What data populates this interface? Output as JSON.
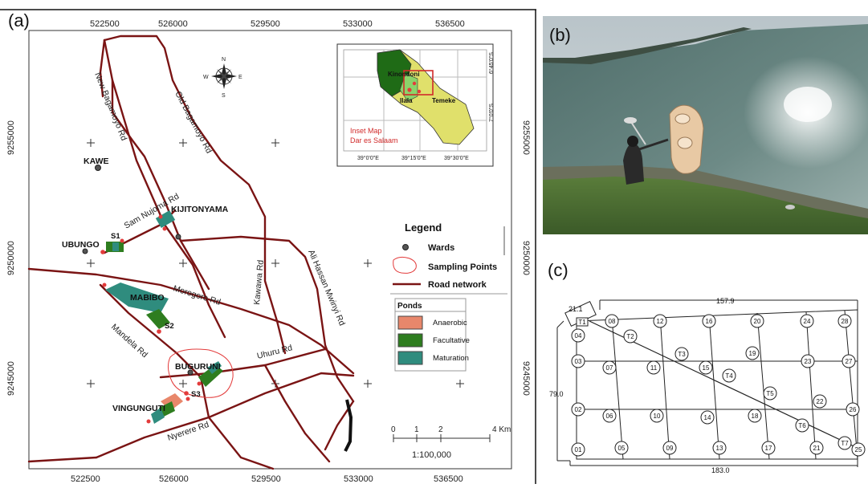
{
  "panels": {
    "a": "(a)",
    "b": "(b)",
    "c": "(c)"
  },
  "map": {
    "easting_ticks": [
      "522500",
      "526000",
      "529500",
      "533000",
      "536500"
    ],
    "northing_ticks": [
      "9255000",
      "9250000",
      "9245000"
    ],
    "roads": {
      "new_bagamoyo": "New Bagamoyo Rd",
      "old_bagamoyo": "Old Bagamoyo Rd",
      "sam_nujoma": "Sam Nujoma  Rd",
      "kawawa": "Kawawa Rd",
      "ali_hassan": "Ali Hassan Mwinyi Rd",
      "morogoro": "Morogoro Rd",
      "mandela": "Mandela Rd",
      "uhuru": "Uhuru Rd",
      "nyerere": "Nyerere Rd"
    },
    "wards": [
      "KAWE",
      "KIJITONYAMA",
      "UBUNGO",
      "MABIBO",
      "BUGURUNI",
      "VINGUNGUTI"
    ],
    "sites": [
      "S1",
      "S2",
      "S3"
    ],
    "compass": {
      "n": "N",
      "s": "S",
      "e": "E",
      "w": "W"
    },
    "legend": {
      "title": "Legend",
      "wards": "Wards",
      "sampling": "Sampling Points",
      "roads": "Road network",
      "ponds_title": "Ponds",
      "anaerobic": "Anaerobic",
      "facultative": "Facultative",
      "maturation": "Maturation",
      "colors": {
        "anaerobic": "#e8876b",
        "facultative": "#2e7d1f",
        "maturation": "#2f8c7e",
        "road": "#7a1414",
        "sampling": "#e33b3b"
      }
    },
    "scale": {
      "ticks": [
        "0",
        "1",
        "2",
        "4 Km"
      ],
      "ratio": "1:100,000"
    },
    "inset": {
      "label1": "Inset Map",
      "label2": "Dar es Salaam",
      "districts": [
        "Kinondoni",
        "Ilala",
        "Temeke"
      ],
      "lat_labels": [
        "6°45'0\"S",
        "7°0'0\"S"
      ],
      "lon_labels": [
        "39°0'0\"E",
        "39°15'0\"E",
        "39°30'0\"E"
      ]
    }
  },
  "grid": {
    "top_length": "157.9",
    "left_length": "21.1",
    "side_length": "79.0",
    "bottom_length": "183.0",
    "points": [
      "01",
      "02",
      "03",
      "04",
      "05",
      "06",
      "07",
      "08",
      "09",
      "10",
      "11",
      "12",
      "13",
      "14",
      "15",
      "16",
      "17",
      "18",
      "19",
      "20",
      "21",
      "22",
      "23",
      "24",
      "25",
      "26",
      "27",
      "28"
    ],
    "transect_points": [
      "T1",
      "T2",
      "T3",
      "T4",
      "T5",
      "T6",
      "T7"
    ]
  }
}
